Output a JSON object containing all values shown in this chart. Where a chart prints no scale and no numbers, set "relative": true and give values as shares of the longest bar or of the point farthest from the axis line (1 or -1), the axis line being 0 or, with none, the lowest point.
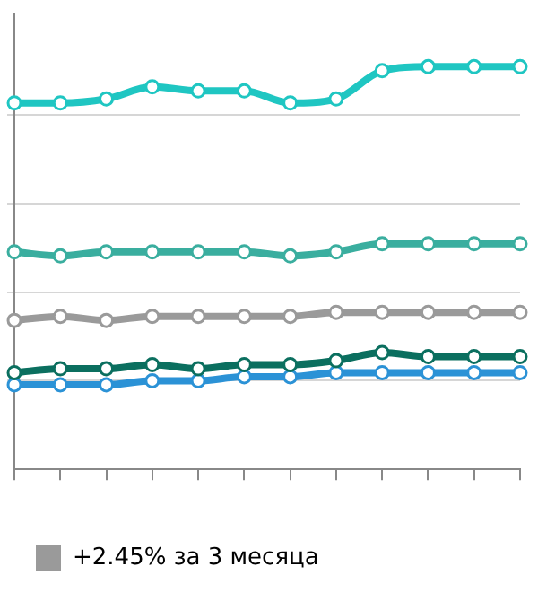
{
  "chart_data": {
    "type": "line",
    "relative": true,
    "categories": [
      null,
      null,
      null,
      null,
      null,
      null,
      null,
      null,
      null,
      null,
      null,
      null
    ],
    "series": [
      {
        "color": "#1fc6c2",
        "values": [
          0.91,
          0.91,
          0.92,
          0.95,
          0.94,
          0.94,
          0.91,
          0.92,
          0.99,
          1,
          1,
          1
        ]
      },
      {
        "color": "#3aae9f",
        "values": [
          0.54,
          0.53,
          0.54,
          0.54,
          0.54,
          0.54,
          0.53,
          0.54,
          0.56,
          0.56,
          0.56,
          0.56
        ]
      },
      {
        "name": "+2.45% за 3 месяца",
        "color": "#9a9a9a",
        "values": [
          0.37,
          0.38,
          0.37,
          0.38,
          0.38,
          0.38,
          0.38,
          0.39,
          0.39,
          0.39,
          0.39,
          0.39
        ]
      },
      {
        "color": "#0b6f5f",
        "values": [
          0.24,
          0.25,
          0.25,
          0.26,
          0.25,
          0.26,
          0.26,
          0.27,
          0.29,
          0.28,
          0.28,
          0.28
        ]
      },
      {
        "color": "#2b92d6",
        "values": [
          0.21,
          0.21,
          0.21,
          0.22,
          0.22,
          0.23,
          0.23,
          0.24,
          0.24,
          0.24,
          0.24,
          0.24
        ]
      }
    ],
    "grid": "y",
    "legend": "bottom",
    "marker": "circle",
    "line_style": "solid"
  }
}
